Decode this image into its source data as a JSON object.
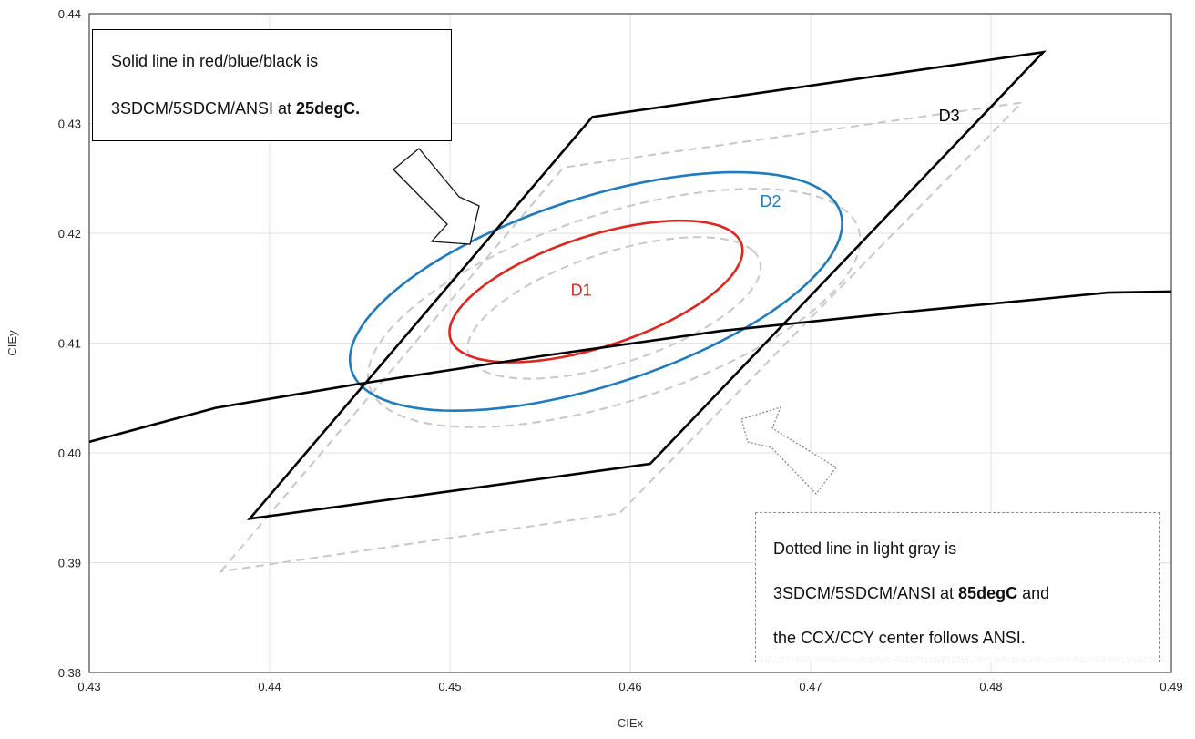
{
  "chart_data": {
    "type": "line",
    "xlabel": "CIEx",
    "ylabel": "CIEy",
    "xlim": [
      0.43,
      0.49
    ],
    "ylim": [
      0.38,
      0.44
    ],
    "x_ticks": [
      "0.43",
      "0.44",
      "0.45",
      "0.46",
      "0.47",
      "0.48",
      "0.49"
    ],
    "y_ticks": [
      "0.38",
      "0.39",
      "0.40",
      "0.41",
      "0.42",
      "0.43",
      "0.44"
    ],
    "grid": true,
    "colors": {
      "D1": "#e0251f",
      "D2": "#1f7bc0",
      "D3": "#000000",
      "hot": "#c8c8c8",
      "blackbody": "#000000"
    },
    "series": [
      {
        "name": "D1",
        "kind": "ellipse",
        "temp": "25degC",
        "style": "solid",
        "center": [
          0.4581,
          0.4147
        ],
        "semi_a": 0.0093,
        "semi_b": 0.0046,
        "angle_deg": 34
      },
      {
        "name": "D2",
        "kind": "ellipse",
        "temp": "25degC",
        "style": "solid",
        "center": [
          0.4581,
          0.4147
        ],
        "semi_a": 0.0156,
        "semi_b": 0.0078,
        "angle_deg": 34
      },
      {
        "name": "D3",
        "kind": "polygon",
        "temp": "25degC",
        "style": "solid",
        "points": [
          [
            0.4389,
            0.394
          ],
          [
            0.4579,
            0.4306
          ],
          [
            0.4829,
            0.4365
          ],
          [
            0.4611,
            0.399
          ]
        ]
      },
      {
        "kind": "ellipse",
        "temp": "85degC",
        "style": "dashed",
        "center": [
          0.4591,
          0.4132
        ],
        "semi_a": 0.0093,
        "semi_b": 0.0046,
        "angle_deg": 34
      },
      {
        "kind": "ellipse",
        "temp": "85degC",
        "style": "dashed",
        "center": [
          0.4591,
          0.4132
        ],
        "semi_a": 0.0156,
        "semi_b": 0.0078,
        "angle_deg": 34
      },
      {
        "kind": "polygon",
        "temp": "85degC",
        "style": "dashed",
        "points": [
          [
            0.4373,
            0.3892
          ],
          [
            0.4563,
            0.426
          ],
          [
            0.4817,
            0.4319
          ],
          [
            0.4594,
            0.3945
          ]
        ]
      },
      {
        "kind": "line",
        "style": "solid",
        "x": [
          0.43,
          0.437,
          0.445,
          0.455,
          0.465,
          0.475,
          0.4865,
          0.49
        ],
        "y": [
          0.401,
          0.4041,
          0.4063,
          0.4088,
          0.4111,
          0.4128,
          0.4146,
          0.4147
        ]
      }
    ],
    "labels": [
      {
        "text": "D1",
        "x": 0.4567,
        "y": 0.4143,
        "color": "#e0251f"
      },
      {
        "text": "D2",
        "x": 0.4672,
        "y": 0.4224,
        "color": "#1f7bc0"
      },
      {
        "text": "D3",
        "x": 0.4771,
        "y": 0.4302,
        "color": "#000000"
      }
    ]
  },
  "annotations": {
    "solid_note": {
      "line1": "Solid line in red/blue/black is",
      "line2_plain": "3SDCM/5SDCM/ANSI at ",
      "line2_bold": "25degC."
    },
    "dotted_note": {
      "line1": "Dotted line in light gray is",
      "line2_plain": "3SDCM/5SDCM/ANSI at ",
      "line2_bold": "85degC",
      "line2_tail": " and",
      "line3": "the CCX/CCY center follows ANSI."
    }
  }
}
